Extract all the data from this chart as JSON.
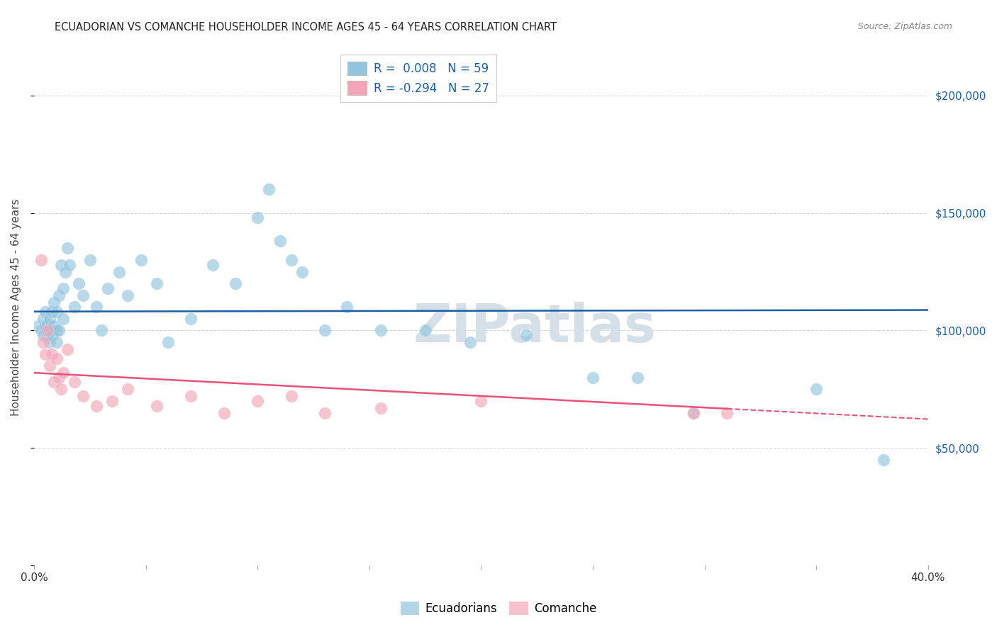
{
  "title": "ECUADORIAN VS COMANCHE HOUSEHOLDER INCOME AGES 45 - 64 YEARS CORRELATION CHART",
  "source": "Source: ZipAtlas.com",
  "ylabel": "Householder Income Ages 45 - 64 years",
  "legend_labels": [
    "Ecuadorians",
    "Comanche"
  ],
  "ecuadorian_r": 0.008,
  "ecuadorian_n": 59,
  "comanche_r": -0.294,
  "comanche_n": 27,
  "blue_color": "#92c5de",
  "pink_color": "#f4a6b8",
  "blue_line_color": "#1a5fa8",
  "pink_line_color": "#e8517a",
  "background_color": "#ffffff",
  "grid_color": "#cccccc",
  "watermark_text": "ZIPatlas",
  "watermark_color": "#d4dfe8",
  "xlim": [
    0.0,
    0.4
  ],
  "ylim": [
    0,
    220000
  ],
  "yticks": [
    0,
    50000,
    100000,
    150000,
    200000
  ],
  "xticks": [
    0.0,
    0.05,
    0.1,
    0.15,
    0.2,
    0.25,
    0.3,
    0.35,
    0.4
  ],
  "xtick_labels": [
    "0.0%",
    "",
    "",
    "",
    "",
    "",
    "",
    "",
    "40.0%"
  ],
  "right_ytick_labels": [
    "$50,000",
    "$100,000",
    "$150,000",
    "$200,000"
  ],
  "right_ytick_values": [
    50000,
    100000,
    150000,
    200000
  ],
  "ecuadorian_x": [
    0.002,
    0.003,
    0.004,
    0.004,
    0.005,
    0.005,
    0.005,
    0.006,
    0.006,
    0.007,
    0.007,
    0.007,
    0.008,
    0.008,
    0.008,
    0.009,
    0.009,
    0.01,
    0.01,
    0.01,
    0.011,
    0.011,
    0.012,
    0.013,
    0.013,
    0.014,
    0.015,
    0.016,
    0.018,
    0.02,
    0.022,
    0.025,
    0.028,
    0.03,
    0.033,
    0.038,
    0.042,
    0.048,
    0.055,
    0.06,
    0.07,
    0.08,
    0.09,
    0.1,
    0.105,
    0.11,
    0.115,
    0.12,
    0.13,
    0.14,
    0.155,
    0.175,
    0.195,
    0.22,
    0.25,
    0.27,
    0.295,
    0.35,
    0.38
  ],
  "ecuadorian_y": [
    102000,
    100000,
    98000,
    105000,
    100000,
    102000,
    108000,
    97000,
    103000,
    100000,
    105000,
    95000,
    108000,
    100000,
    98000,
    102000,
    112000,
    100000,
    95000,
    108000,
    100000,
    115000,
    128000,
    105000,
    118000,
    125000,
    135000,
    128000,
    110000,
    120000,
    115000,
    130000,
    110000,
    100000,
    118000,
    125000,
    115000,
    130000,
    120000,
    95000,
    105000,
    128000,
    120000,
    148000,
    160000,
    138000,
    130000,
    125000,
    100000,
    110000,
    100000,
    100000,
    95000,
    98000,
    80000,
    80000,
    65000,
    75000,
    45000
  ],
  "comanche_x": [
    0.003,
    0.004,
    0.005,
    0.006,
    0.007,
    0.008,
    0.009,
    0.01,
    0.011,
    0.012,
    0.013,
    0.015,
    0.018,
    0.022,
    0.028,
    0.035,
    0.042,
    0.055,
    0.07,
    0.085,
    0.1,
    0.115,
    0.13,
    0.155,
    0.2,
    0.295,
    0.31
  ],
  "comanche_y": [
    130000,
    95000,
    90000,
    100000,
    85000,
    90000,
    78000,
    88000,
    80000,
    75000,
    82000,
    92000,
    78000,
    72000,
    68000,
    70000,
    75000,
    68000,
    72000,
    65000,
    70000,
    72000,
    65000,
    67000,
    70000,
    65000,
    65000
  ]
}
